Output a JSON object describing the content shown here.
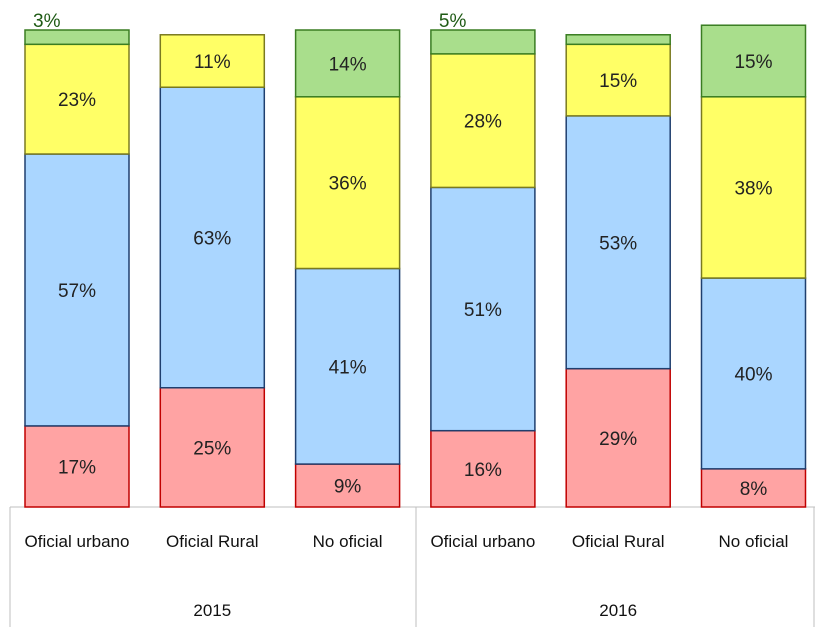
{
  "chart_data": {
    "type": "stacked-bar",
    "categories": [
      "Oficial urbano",
      "Oficial Rural",
      "No oficial",
      "Oficial urbano",
      "Oficial Rural",
      "No oficial"
    ],
    "groups": [
      "2015",
      "2016"
    ],
    "ylim": [
      0,
      100
    ],
    "series": [
      {
        "color": "#ffa3a3",
        "stroke": "#c00000",
        "values": [
          17,
          25,
          9,
          16,
          29,
          8
        ],
        "value_labels": [
          "17%",
          "25%",
          "9%",
          "16%",
          "29%",
          "8%"
        ]
      },
      {
        "color": "#aad6ff",
        "stroke": "#1f3f6e",
        "values": [
          57,
          63,
          41,
          51,
          53,
          40
        ],
        "value_labels": [
          "57%",
          "63%",
          "41%",
          "51%",
          "53%",
          "40%"
        ]
      },
      {
        "color": "#ffff66",
        "stroke": "#7a7a20",
        "values": [
          23,
          11,
          36,
          28,
          15,
          38
        ],
        "value_labels": [
          "23%",
          "11%",
          "36%",
          "28%",
          "15%",
          "38%"
        ]
      },
      {
        "color": "#a9de8c",
        "stroke": "#3a7d22",
        "values": [
          3,
          null,
          14,
          5,
          2,
          15
        ],
        "value_labels": [
          "3%",
          null,
          "14%",
          "5%",
          null,
          "15%"
        ]
      }
    ]
  }
}
